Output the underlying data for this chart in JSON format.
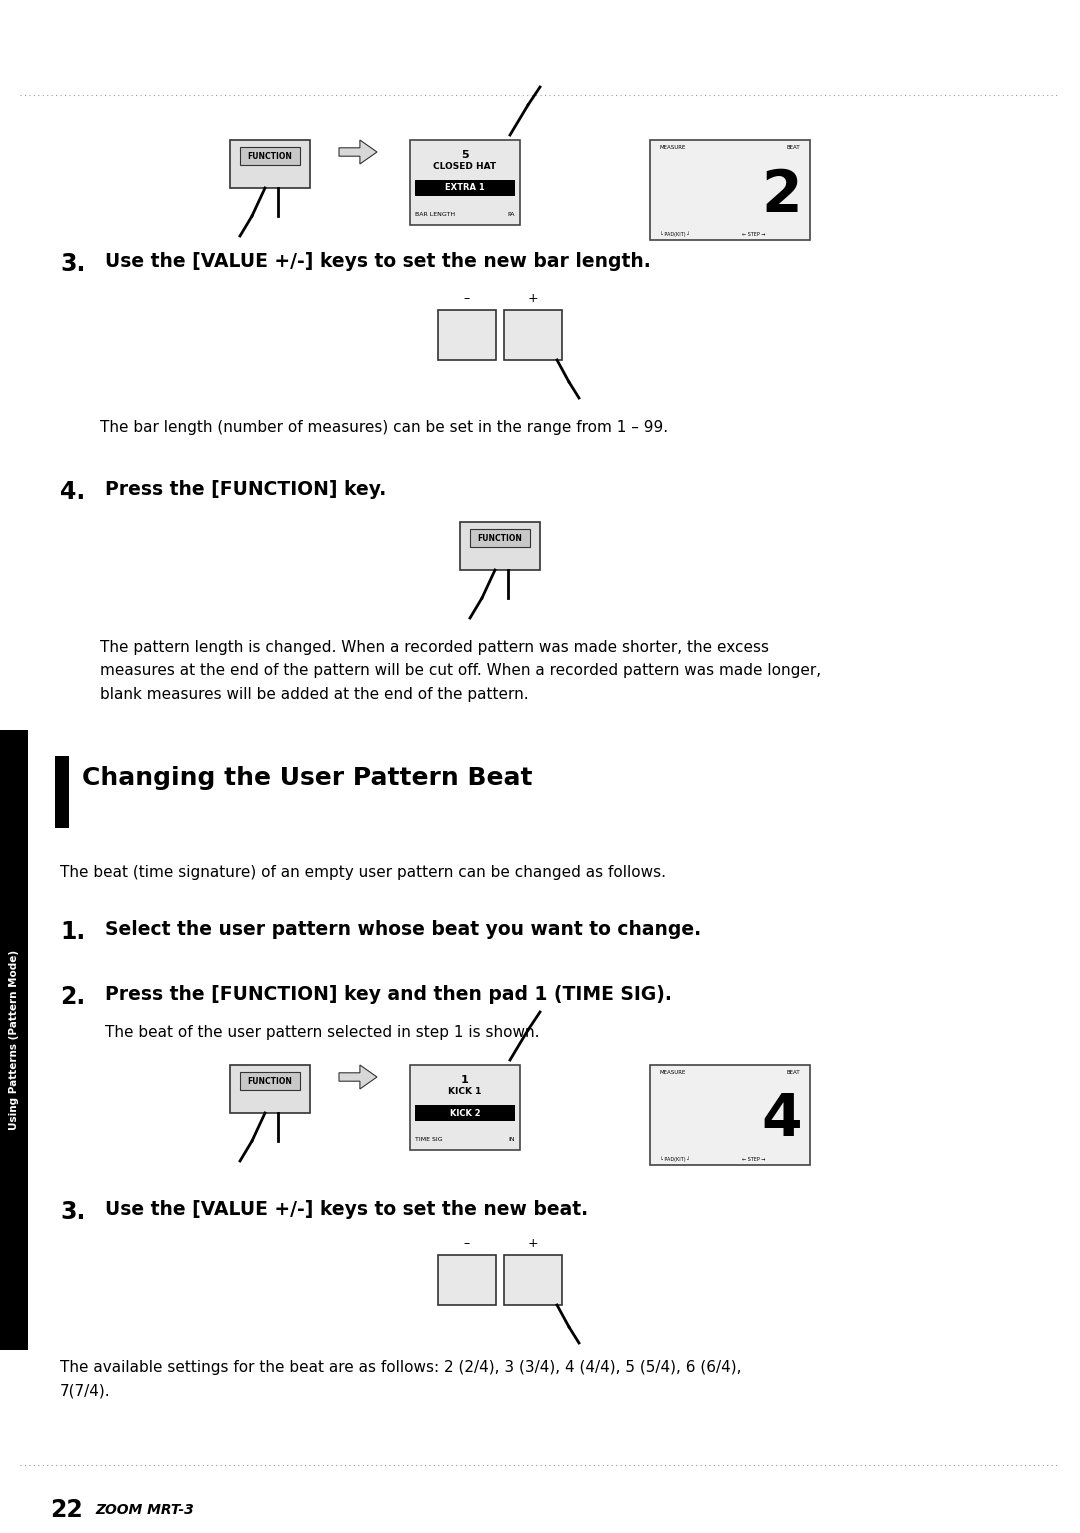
{
  "bg_color": "#ffffff",
  "page_number": "22",
  "brand": "ZOOM MRT-3",
  "sidebar_label": "Using Patterns (Pattern Mode)",
  "section_title": "Changing the User Pattern Beat",
  "step3_top_text": "Use the [VALUE +/-] keys to set the new bar length.",
  "bar_length_body": "The bar length (number of measures) can be set in the range from 1 – 99.",
  "step4_text": "Press the [FUNCTION] key.",
  "pattern_length_body": "The pattern length is changed. When a recorded pattern was made shorter, the excess\nmeasures at the end of the pattern will be cut off. When a recorded pattern was made longer,\nblank measures will be added at the end of the pattern.",
  "beat_intro_body": "The beat (time signature) of an empty user pattern can be changed as follows.",
  "step1_text": "Select the user pattern whose beat you want to change.",
  "step2_text": "Press the [FUNCTION] key and then pad 1 (TIME SIG).",
  "step2_sub": "The beat of the user pattern selected in step 1 is shown.",
  "step3_bot_text": "Use the [VALUE +/-] keys to set the new beat.",
  "available_settings": "The available settings for the beat are as follows: 2 (2/4), 3 (3/4), 4 (4/4), 5 (5/4), 6 (6/4),\n7(7/4)."
}
